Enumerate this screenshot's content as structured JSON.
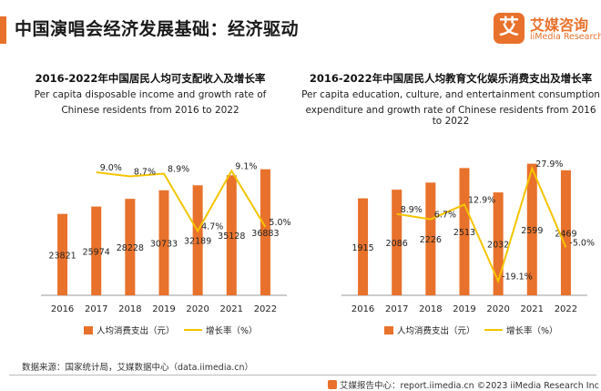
{
  "header": {
    "title": "中国演唱会经济发展基础：经济驱动",
    "logo_mark": "艾",
    "logo_cn": "艾媒咨询",
    "logo_en": "iiMedia Research"
  },
  "footer": {
    "source": "数据来源：国家统计局，艾媒数据中心（data.iimedia.cn）",
    "right": "艾媒报告中心：report.iimedia.cn ©2023 iiMedia Research Inc"
  },
  "colors": {
    "bar": "#E8712B",
    "line": "#F5C400",
    "axis": "#999999"
  },
  "chart_data": [
    {
      "type": "bar",
      "title": "2016-2022年中国居民人均可支配收入及增长率",
      "subtitle_line1": "Per capita disposable income and growth rate of",
      "subtitle_line2": "Chinese residents from 2016 to 2022",
      "categories": [
        "2016",
        "2017",
        "2018",
        "2019",
        "2020",
        "2021",
        "2022"
      ],
      "series": [
        {
          "name": "人均消费支出（元）",
          "type": "bar",
          "values": [
            23821,
            25974,
            28228,
            30733,
            32189,
            35128,
            36883
          ],
          "labels": [
            "23821",
            "25974",
            "28228",
            "30733",
            "32189",
            "35128",
            "36883"
          ]
        },
        {
          "name": "增长率（%）",
          "type": "line",
          "values": [
            null,
            9.0,
            8.7,
            8.9,
            4.7,
            9.1,
            5.0
          ],
          "labels": [
            "",
            "9.0%",
            "8.7%",
            "8.9%",
            "4.7%",
            "9.1%",
            "5.0%"
          ]
        }
      ],
      "ylim": [
        0,
        40000
      ],
      "y2lim": [
        0,
        10
      ]
    },
    {
      "type": "bar",
      "title": "2016-2022年中国居民人均教育文化娱乐消费支出及增长率",
      "subtitle_line1": "Per capita education, culture, and entertainment consumption",
      "subtitle_line2": "expenditure and growth rate of Chinese residents from 2016 to 2022",
      "categories": [
        "2016",
        "2017",
        "2018",
        "2019",
        "2020",
        "2021",
        "2022"
      ],
      "series": [
        {
          "name": "人均消费支出（元）",
          "type": "bar",
          "values": [
            1915,
            2086,
            2226,
            2513,
            2032,
            2599,
            2469
          ],
          "labels": [
            "1915",
            "2086",
            "2226",
            "2513",
            "2032",
            "2599",
            "2469"
          ]
        },
        {
          "name": "增长率（%）",
          "type": "line",
          "values": [
            null,
            8.9,
            6.7,
            12.9,
            -19.1,
            27.9,
            -5.0
          ],
          "labels": [
            "",
            "8.9%",
            "6.7%",
            "12.9%",
            "-19.1%",
            "27.9%",
            "-5.0%"
          ]
        }
      ],
      "ylim": [
        0,
        2700
      ],
      "y2lim": [
        -25,
        32
      ]
    }
  ]
}
